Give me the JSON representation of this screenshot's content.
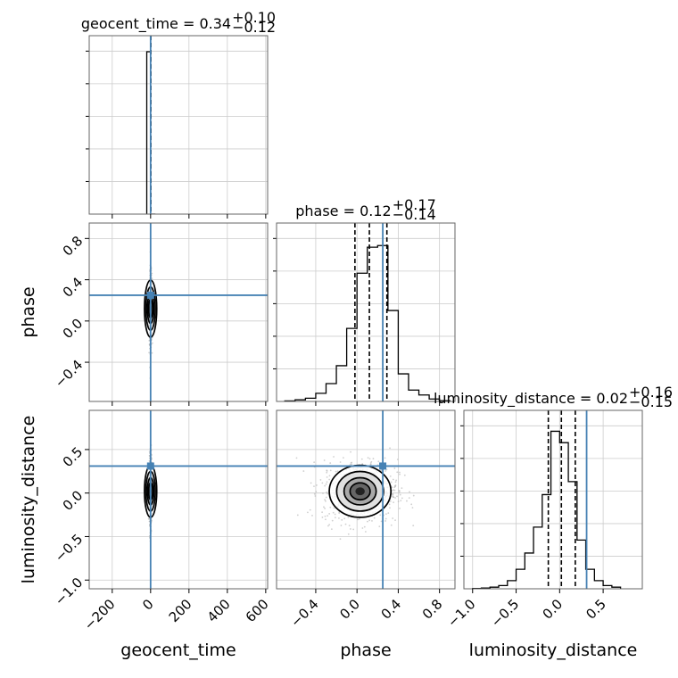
{
  "chart_data": {
    "type": "corner",
    "parameters": [
      "geocent_time",
      "phase",
      "luminosity_distance"
    ],
    "axis_labels": {
      "x": [
        "geocent_time",
        "phase",
        "luminosity_distance"
      ],
      "y": [
        "phase",
        "luminosity_distance"
      ]
    },
    "titles": [
      {
        "param": "geocent_time",
        "text": "geocent_time = 0.34",
        "plus": "+0.10",
        "minus": "−0.12"
      },
      {
        "param": "phase",
        "text": "phase = 0.12",
        "plus": "+0.17",
        "minus": "−0.14"
      },
      {
        "param": "luminosity_distance",
        "text": "luminosity_distance = 0.02",
        "plus": "+0.16",
        "minus": "−0.15"
      }
    ],
    "ranges": {
      "geocent_time": [
        -320,
        610
      ],
      "phase": [
        -0.78,
        0.95
      ],
      "luminosity_distance": [
        -1.1,
        0.95
      ]
    },
    "ticks": {
      "geocent_time": {
        "values": [
          -200,
          0,
          200,
          400,
          600
        ],
        "labels": [
          "−200",
          "0",
          "200",
          "400",
          "600"
        ]
      },
      "phase": {
        "values": [
          -0.4,
          0.0,
          0.4,
          0.8
        ],
        "labels": [
          "−0.4",
          "0.0",
          "0.4",
          "0.8"
        ]
      },
      "luminosity_distance": {
        "values": [
          -1.0,
          -0.5,
          0.0,
          0.5
        ],
        "labels": [
          "−1.0",
          "−0.5",
          "0.0",
          "0.5"
        ]
      }
    },
    "x_tick_labels": {
      "phase": [
        "−0.4",
        "0.0",
        "0.4",
        "0.8"
      ],
      "luminosity_distance": [
        "−1.0",
        "−0.5",
        "0.0",
        "0.5"
      ]
    },
    "truths": {
      "geocent_time": 0.0,
      "phase": 0.25,
      "luminosity_distance": 0.31
    },
    "quantiles": {
      "geocent_time": [
        0.22,
        0.34,
        0.44
      ],
      "phase": [
        -0.02,
        0.12,
        0.29
      ],
      "luminosity_distance": [
        -0.13,
        0.02,
        0.18
      ]
    },
    "histograms": {
      "geocent_time": {
        "bin_edges": [
          -20,
          0,
          25
        ],
        "counts": [
          1.0,
          0.0
        ]
      },
      "phase": {
        "bin_edges": [
          -0.7,
          -0.6,
          -0.5,
          -0.4,
          -0.3,
          -0.2,
          -0.1,
          0.0,
          0.1,
          0.2,
          0.3,
          0.4,
          0.5,
          0.6,
          0.7,
          0.8,
          0.9
        ],
        "counts": [
          0.003,
          0.01,
          0.02,
          0.05,
          0.11,
          0.22,
          0.45,
          0.79,
          0.95,
          0.96,
          0.56,
          0.17,
          0.07,
          0.04,
          0.015,
          0.005
        ]
      },
      "luminosity_distance": {
        "bin_edges": [
          -1.0,
          -0.9,
          -0.8,
          -0.7,
          -0.6,
          -0.5,
          -0.4,
          -0.3,
          -0.2,
          -0.1,
          0.0,
          0.1,
          0.2,
          0.3,
          0.4,
          0.5,
          0.6,
          0.7
        ],
        "counts": [
          0.002,
          0.005,
          0.01,
          0.02,
          0.05,
          0.12,
          0.22,
          0.38,
          0.58,
          0.97,
          0.9,
          0.66,
          0.3,
          0.12,
          0.05,
          0.02,
          0.01
        ]
      }
    },
    "scatter_2d": {
      "phase_vs_geocent_time": {
        "x_mean": 0,
        "x_sd": 2.5,
        "y_mean": 0.12,
        "y_sd": 0.12
      },
      "luminosity_distance_vs_geocent_time": {
        "x_mean": 0,
        "x_sd": 2.5,
        "y_mean": 0.02,
        "y_sd": 0.13
      },
      "luminosity_distance_vs_phase": {
        "x_mean": 0.03,
        "x_sd": 0.13,
        "y_mean": 0.02,
        "y_sd": 0.13
      }
    },
    "colors": {
      "truth": "#4682b4",
      "hist": "#000000",
      "points": "#b0b0b0",
      "grid": "#cccccc"
    },
    "grid": true
  }
}
